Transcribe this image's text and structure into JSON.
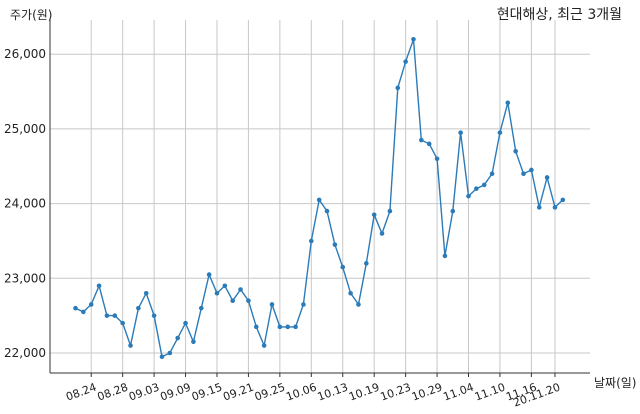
{
  "chart_data": {
    "type": "line",
    "title": "현대해상, 최근 3개월",
    "ylabel": "주가(원)",
    "xlabel": "날짜(일)",
    "ylim": [
      21700,
      26500
    ],
    "yticks": [
      22000,
      23000,
      24000,
      25000,
      26000
    ],
    "ytick_labels": [
      "22,000",
      "23,000",
      "24,000",
      "25,000",
      "26,000"
    ],
    "xticks": [
      {
        "index": 2,
        "label": "08.24"
      },
      {
        "index": 6,
        "label": "08.28"
      },
      {
        "index": 10,
        "label": "09.03"
      },
      {
        "index": 14,
        "label": "09.09"
      },
      {
        "index": 18,
        "label": "09.15"
      },
      {
        "index": 22,
        "label": "09.21"
      },
      {
        "index": 26,
        "label": "09.25"
      },
      {
        "index": 30,
        "label": "10.06"
      },
      {
        "index": 34,
        "label": "10.13"
      },
      {
        "index": 38,
        "label": "10.19"
      },
      {
        "index": 42,
        "label": "10.23"
      },
      {
        "index": 46,
        "label": "10.29"
      },
      {
        "index": 50,
        "label": "11.04"
      },
      {
        "index": 54,
        "label": "11.10"
      },
      {
        "index": 58,
        "label": "11.16"
      },
      {
        "index": 61,
        "label": "20.11.20"
      }
    ],
    "grid": true,
    "color": "#2b7bb9",
    "values": [
      22600,
      22550,
      22650,
      22900,
      22500,
      22500,
      22400,
      22100,
      22600,
      22800,
      22500,
      21950,
      22000,
      22200,
      22400,
      22150,
      22600,
      23050,
      22800,
      22900,
      22700,
      22850,
      22700,
      22350,
      22100,
      22650,
      22350,
      22350,
      22350,
      22650,
      23500,
      24050,
      23900,
      23450,
      23150,
      22800,
      22650,
      23200,
      23850,
      23600,
      23900,
      25550,
      25900,
      26200,
      24850,
      24800,
      24600,
      23300,
      23900,
      24950,
      24100,
      24200,
      24250,
      24400,
      24950,
      25350,
      24700,
      24400,
      24450,
      23950,
      24350,
      23950,
      24050
    ]
  }
}
